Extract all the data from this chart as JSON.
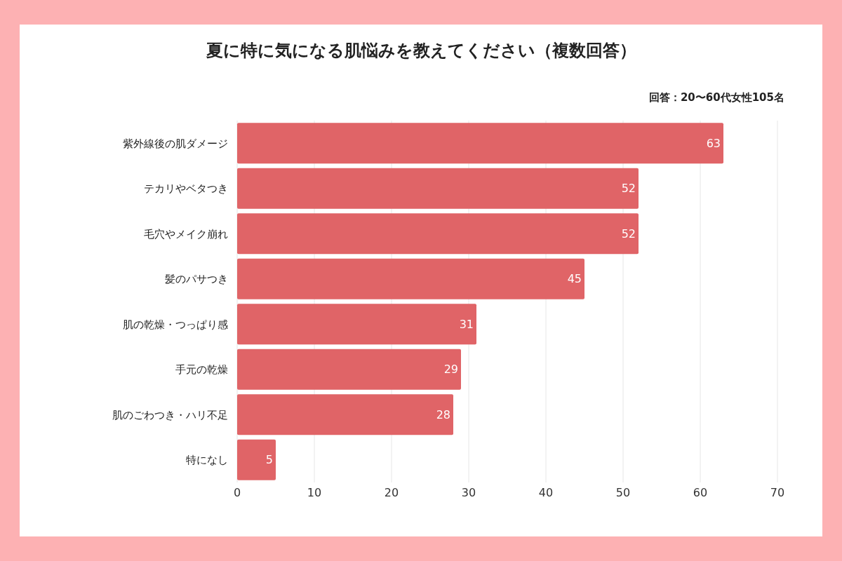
{
  "chart_data": {
    "type": "bar",
    "orientation": "horizontal",
    "title": "夏に特に気になる肌悩みを教えてください（複数回答）",
    "subtitle": "回答：20〜60代女性105名",
    "categories": [
      "紫外線後の肌ダメージ",
      "テカリやベタつき",
      "毛穴やメイク崩れ",
      "髪のパサつき",
      "肌の乾燥・つっぱり感",
      "手元の乾燥",
      "肌のごわつき・ハリ不足",
      "特になし"
    ],
    "values": [
      63,
      52,
      52,
      45,
      31,
      29,
      28,
      5
    ],
    "color": "#e06467",
    "xlim": [
      0,
      70
    ],
    "xticks": [
      0,
      10,
      20,
      30,
      40,
      50,
      60,
      70
    ],
    "grid": "x",
    "data_labels": true
  }
}
